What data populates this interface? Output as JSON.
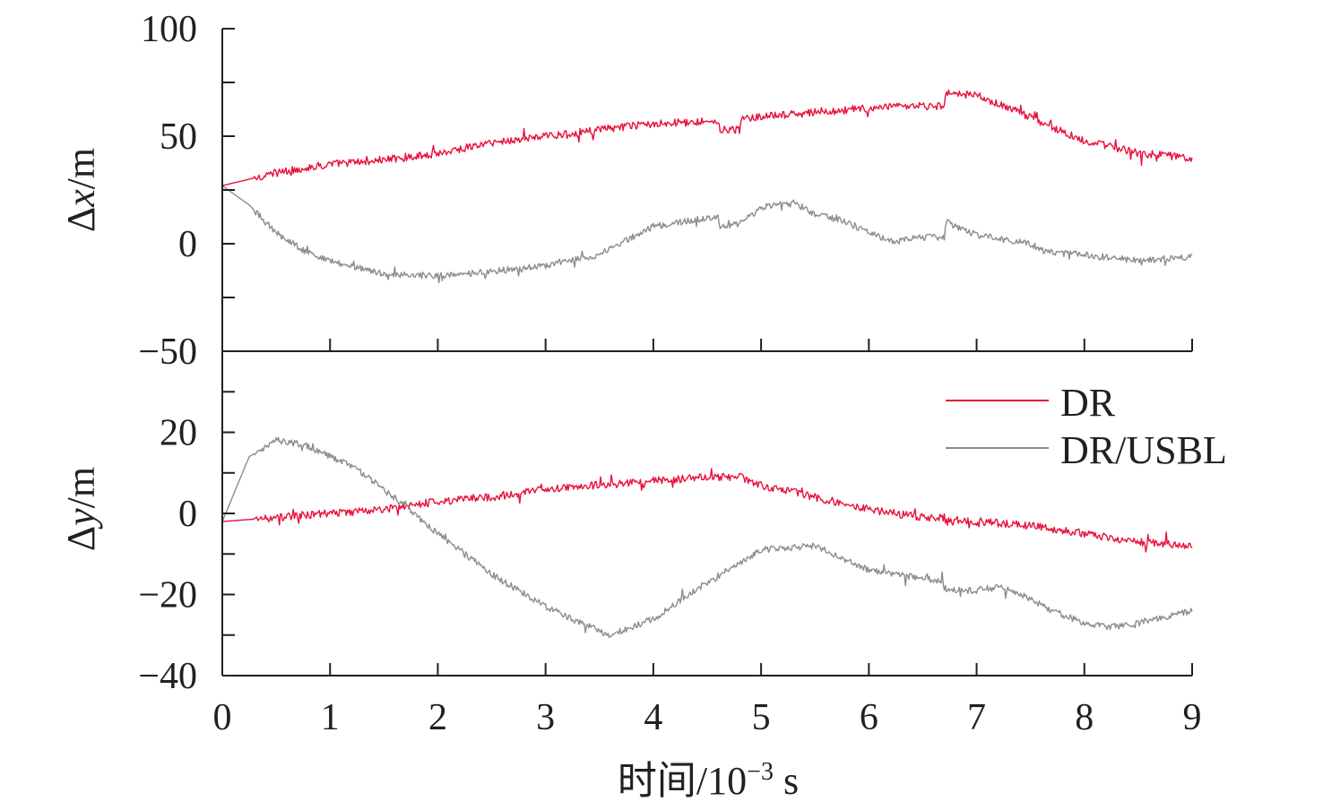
{
  "chart_data": [
    {
      "type": "line",
      "ylabel": {
        "delta": "Δ",
        "var": "x",
        "unit": "/m"
      },
      "ylim": [
        -50,
        100
      ],
      "yticks": [
        -50,
        0,
        50,
        100
      ],
      "ytick_labels": [
        "−50",
        "0",
        "50",
        "100"
      ],
      "yminor": [
        -25,
        25,
        75
      ],
      "xlim": [
        0,
        9
      ],
      "series": [
        {
          "name": "DR",
          "color": "#e8113a",
          "x": [
            0,
            0.5,
            1,
            1.5,
            2,
            2.5,
            3,
            3.5,
            4,
            4.5,
            4.6,
            4.62,
            4.8,
            4.82,
            5,
            5.5,
            6,
            6.5,
            6.7,
            6.72,
            7,
            7.5,
            7.65,
            8,
            8.5,
            9
          ],
          "y": [
            27,
            33,
            37,
            39,
            42,
            47,
            50,
            53,
            56,
            57,
            57,
            53,
            53,
            58,
            59,
            61,
            63,
            64,
            64,
            70,
            69,
            59,
            55,
            48,
            42,
            40
          ]
        },
        {
          "name": "DR/USBL",
          "color": "#8c8c8c",
          "x": [
            0,
            0.25,
            0.5,
            0.75,
            1,
            1.25,
            1.5,
            2,
            2.5,
            3,
            3.5,
            4,
            4.5,
            4.6,
            4.62,
            4.8,
            5,
            5.3,
            5.5,
            5.8,
            6,
            6.25,
            6.5,
            6.7,
            6.72,
            7,
            7.5,
            7.65,
            8,
            8.5,
            9
          ],
          "y": [
            27,
            18,
            5,
            -3,
            -8,
            -11,
            -14,
            -15,
            -13,
            -10,
            -5,
            8,
            12,
            12,
            8,
            9,
            17,
            19,
            14,
            10,
            5,
            1,
            3,
            3,
            10,
            4,
            0,
            -4,
            -5,
            -8,
            -6
          ]
        }
      ]
    },
    {
      "type": "line",
      "ylabel": {
        "delta": "Δ",
        "var": "y",
        "unit": "/m"
      },
      "ylim": [
        -40,
        40
      ],
      "yticks": [
        -40,
        -20,
        0,
        20
      ],
      "ytick_labels": [
        "−40",
        "−20",
        "0",
        "20"
      ],
      "yminor": [
        -30,
        -10,
        10,
        30
      ],
      "xlim": [
        0,
        9
      ],
      "xticks": [
        0,
        1,
        2,
        3,
        4,
        5,
        6,
        7,
        8,
        9
      ],
      "xtick_labels": [
        "0",
        "1",
        "2",
        "3",
        "4",
        "5",
        "6",
        "7",
        "8",
        "9"
      ],
      "xlabel": {
        "prefix": "时间/10",
        "exp": "−3",
        "suffix": " s"
      },
      "legend": "top-right",
      "series": [
        {
          "name": "DR",
          "color": "#e8113a",
          "x": [
            0,
            0.5,
            1,
            1.5,
            2,
            2.5,
            3,
            3.5,
            4,
            4.5,
            4.8,
            5,
            5.5,
            6,
            6.5,
            6.7,
            6.72,
            7,
            7.5,
            8,
            8.5,
            9
          ],
          "y": [
            -2,
            -1,
            0,
            1,
            3,
            4,
            6,
            7,
            8,
            9,
            9,
            7,
            4,
            1,
            -1,
            -1,
            -2,
            -2,
            -3,
            -5,
            -7,
            -8
          ]
        },
        {
          "name": "DR/USBL",
          "color": "#8c8c8c",
          "x": [
            0,
            0.25,
            0.5,
            0.75,
            1,
            1.25,
            1.5,
            2,
            2.5,
            3,
            3.5,
            3.6,
            4,
            4.5,
            5,
            5.5,
            6,
            6.5,
            6.7,
            6.72,
            7,
            7.2,
            7.5,
            7.7,
            8,
            8.25,
            8.5,
            9
          ],
          "y": [
            -2,
            14,
            18,
            17,
            14,
            11,
            6,
            -5,
            -15,
            -23,
            -29,
            -30,
            -26,
            -17,
            -9,
            -8,
            -14,
            -16,
            -17,
            -19,
            -19,
            -18,
            -21,
            -24,
            -27,
            -28,
            -27,
            -24
          ]
        }
      ]
    }
  ]
}
